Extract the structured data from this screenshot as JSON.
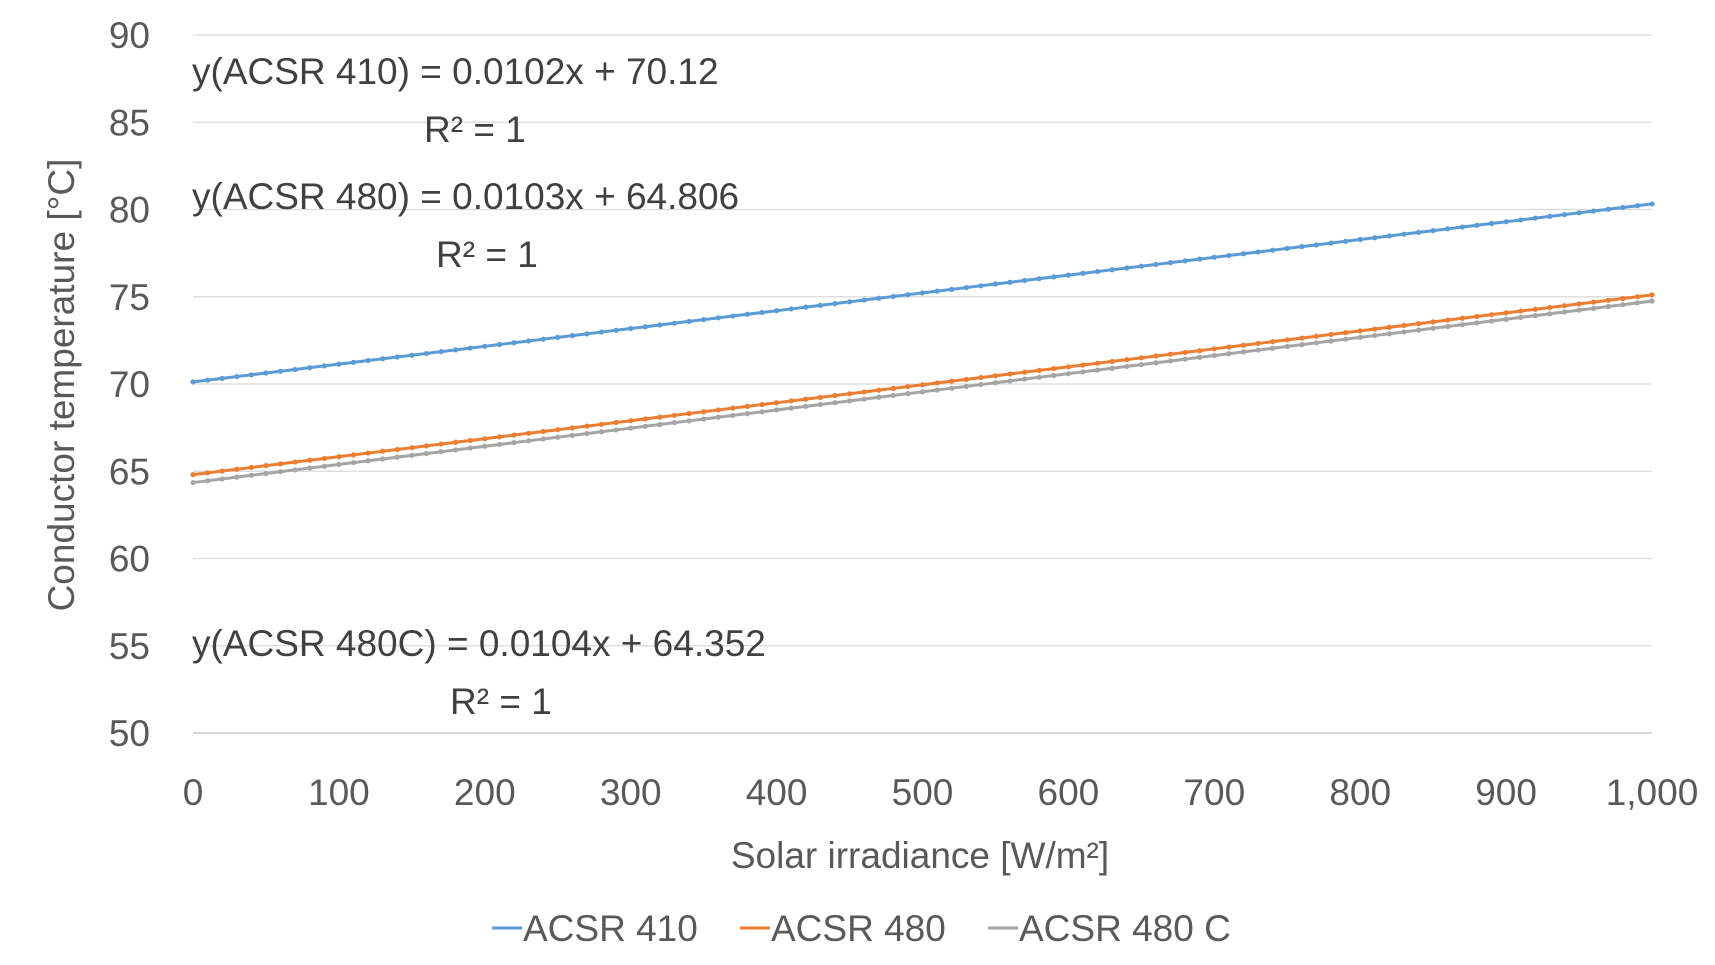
{
  "chart_data": {
    "type": "line",
    "xlabel": "Solar irradiance [W/m²]",
    "ylabel": "Conductor temperature [°C]",
    "xlim": [
      0,
      1000
    ],
    "ylim": [
      50,
      90
    ],
    "x_ticks": [
      "0",
      "100",
      "200",
      "300",
      "400",
      "500",
      "600",
      "700",
      "800",
      "900",
      "1,000"
    ],
    "y_ticks": [
      "50",
      "55",
      "60",
      "65",
      "70",
      "75",
      "80",
      "85",
      "90"
    ],
    "grid": "horizontal",
    "legend_position": "bottom",
    "x_step": 10,
    "series": [
      {
        "name": "ACSR 410",
        "color": "#5B9BD5",
        "slope": 0.0102,
        "intercept": 70.12,
        "x": [
          0,
          1000
        ],
        "y": [
          70.12,
          80.32
        ]
      },
      {
        "name": "ACSR 480",
        "color": "#ED7D31",
        "slope": 0.0103,
        "intercept": 64.806,
        "x": [
          0,
          1000
        ],
        "y": [
          64.806,
          75.106
        ]
      },
      {
        "name": "ACSR 480 C",
        "color": "#A5A5A5",
        "slope": 0.0104,
        "intercept": 64.352,
        "x": [
          0,
          1000
        ],
        "y": [
          64.352,
          74.752
        ]
      }
    ],
    "annotations": [
      {
        "equation": "y(ACSR 410) = 0.0102x + 70.12",
        "r2": "R² = 1"
      },
      {
        "equation": "y(ACSR 480) = 0.0103x + 64.806",
        "r2": "R² = 1"
      },
      {
        "equation": "y(ACSR 480C) = 0.0104x + 64.352",
        "r2": "R² = 1"
      }
    ]
  }
}
